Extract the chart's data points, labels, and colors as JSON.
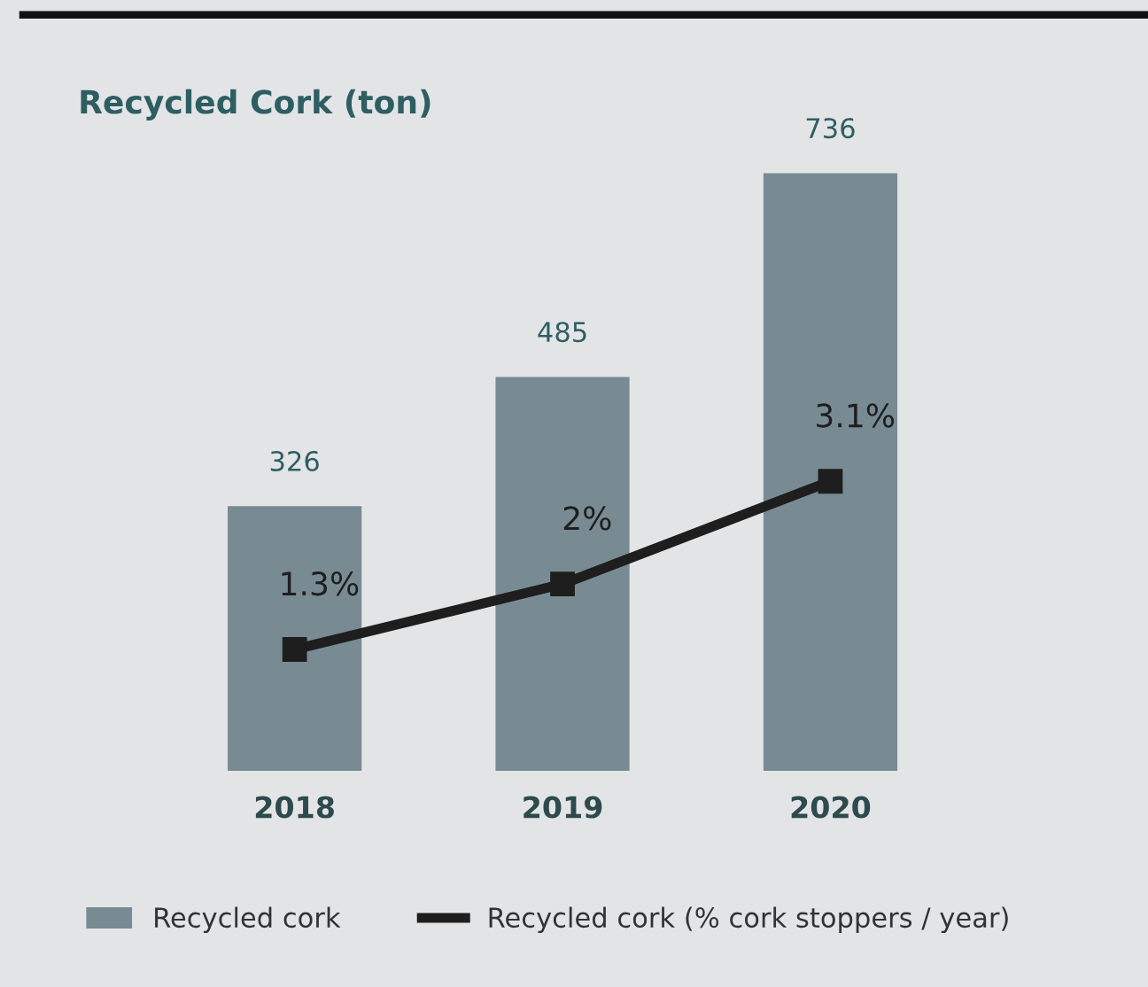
{
  "chart_data": {
    "type": "bar",
    "title": "Recycled Cork (ton)",
    "categories": [
      "2018",
      "2019",
      "2020"
    ],
    "series": [
      {
        "name": "Recycled cork",
        "color": "#788b93",
        "values": [
          326,
          485,
          736
        ]
      },
      {
        "name": "Recycled cork (% cork stoppers / year)",
        "type": "line",
        "axis": "y2",
        "color": "#1e1e1e",
        "values": [
          1.3,
          2,
          3.1
        ],
        "value_labels": [
          "1.3%",
          "2%",
          "3.1%"
        ]
      }
    ],
    "tick_labels": "x",
    "grid": false,
    "legend": "bottom",
    "marker": "square",
    "line_style": "solid",
    "data_labels": true
  }
}
